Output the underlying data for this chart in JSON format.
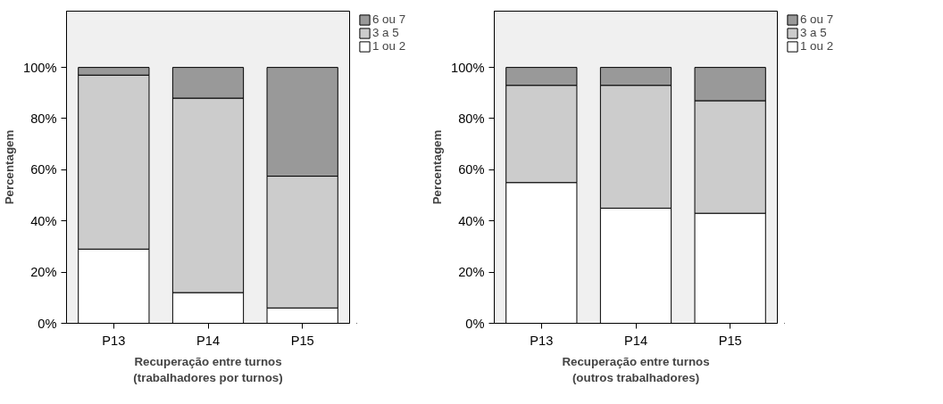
{
  "chart_data": [
    {
      "type": "bar",
      "stacked": true,
      "categories": [
        "P13",
        "P14",
        "P15"
      ],
      "xlabel": "Recuperação entre turnos\n(trabalhadores por turnos)",
      "ylabel": "Percentagem",
      "ylim": [
        0,
        122
      ],
      "yticks": [
        {
          "value": 0,
          "label": "0%"
        },
        {
          "value": 20,
          "label": "20%"
        },
        {
          "value": 40,
          "label": "40%"
        },
        {
          "value": 60,
          "label": "60%"
        },
        {
          "value": 80,
          "label": "80%"
        },
        {
          "value": 100,
          "label": "100%"
        }
      ],
      "grid": false,
      "legend": "right",
      "series": [
        {
          "name": "1 ou 2",
          "color": "#ffffff",
          "values": [
            29,
            12,
            6
          ]
        },
        {
          "name": "3 a 5",
          "color": "#cccccc",
          "values": [
            68,
            76,
            51.5
          ]
        },
        {
          "name": "6 ou 7",
          "color": "#999999",
          "values": [
            3,
            12,
            42.5
          ]
        }
      ]
    },
    {
      "type": "bar",
      "stacked": true,
      "categories": [
        "P13",
        "P14",
        "P15"
      ],
      "xlabel": "Recuperação entre turnos\n(outros trabalhadores)",
      "ylabel": "Percentagem",
      "ylim": [
        0,
        122
      ],
      "yticks": [
        {
          "value": 0,
          "label": "0%"
        },
        {
          "value": 20,
          "label": "20%"
        },
        {
          "value": 40,
          "label": "40%"
        },
        {
          "value": 60,
          "label": "60%"
        },
        {
          "value": 80,
          "label": "80%"
        },
        {
          "value": 100,
          "label": "100%"
        }
      ],
      "grid": false,
      "legend": "right",
      "series": [
        {
          "name": "1 ou 2",
          "color": "#ffffff",
          "values": [
            55,
            45,
            43
          ]
        },
        {
          "name": "3 a 5",
          "color": "#cccccc",
          "values": [
            38,
            48,
            44
          ]
        },
        {
          "name": "6 ou 7",
          "color": "#999999",
          "values": [
            7,
            7,
            13
          ]
        }
      ]
    }
  ]
}
